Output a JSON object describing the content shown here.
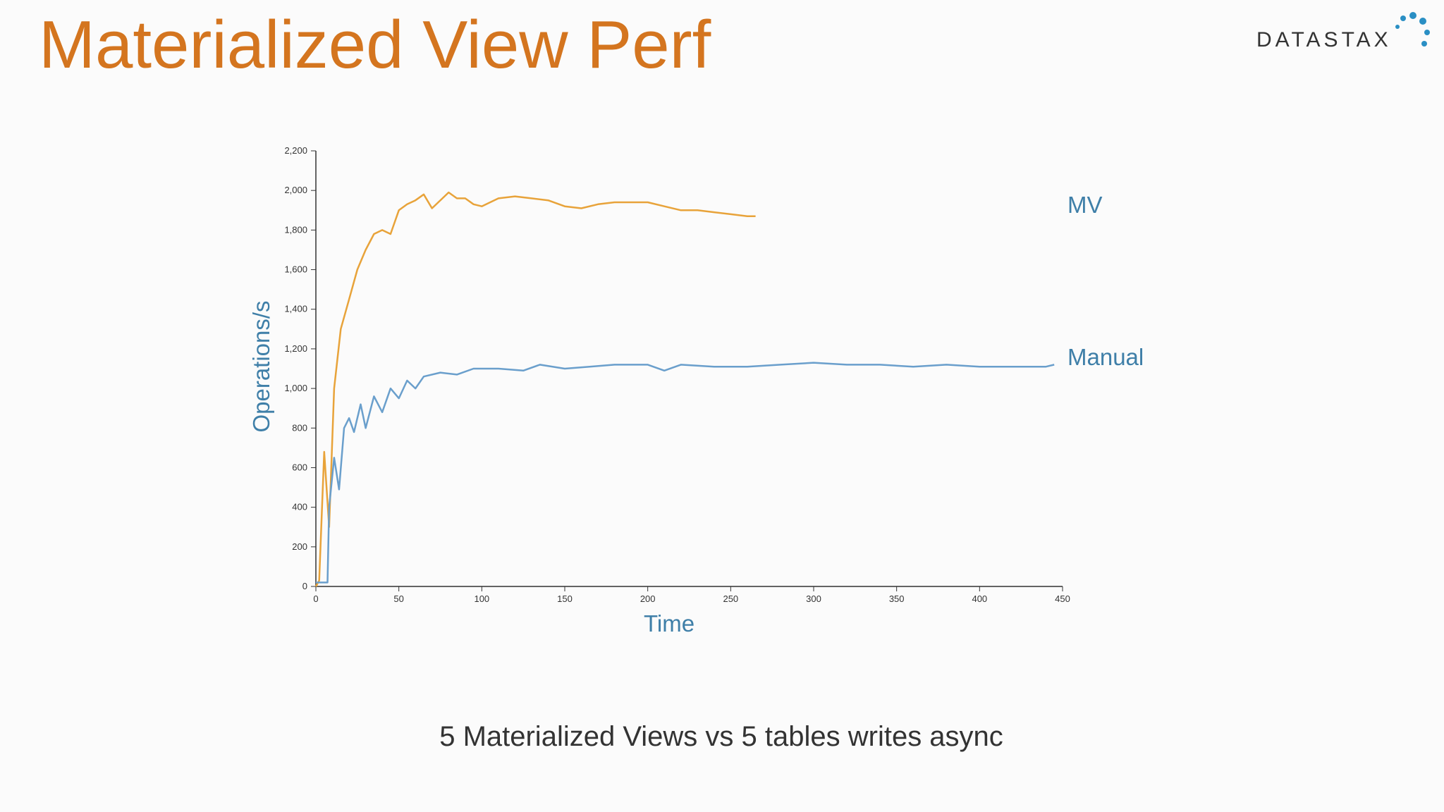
{
  "slide": {
    "title": "Materialized View Perf",
    "logo": "DATASTAX",
    "caption": "5 Materialized Views vs 5 tables writes async"
  },
  "chart_data": {
    "type": "line",
    "xlabel": "Time",
    "ylabel": "Operations/s",
    "xlim": [
      0,
      450
    ],
    "xticks": [
      0,
      50,
      100,
      150,
      200,
      250,
      300,
      350,
      400,
      450
    ],
    "ylim": [
      0,
      2200
    ],
    "yticks": [
      0,
      200,
      400,
      600,
      800,
      {
        "value": 1000,
        "label": "1,000"
      },
      {
        "value": 1200,
        "label": "1,200"
      },
      {
        "value": 1400,
        "label": "1,400"
      },
      {
        "value": 1600,
        "label": "1,600"
      },
      {
        "value": 1800,
        "label": "1,800"
      },
      {
        "value": 2000,
        "label": "2,000"
      },
      {
        "value": 2200,
        "label": "2,200"
      }
    ],
    "series": [
      {
        "name": "MV",
        "color": "#e8a33a",
        "x": [
          0,
          2,
          5,
          8,
          11,
          15,
          20,
          25,
          30,
          35,
          40,
          45,
          50,
          55,
          60,
          65,
          70,
          80,
          85,
          90,
          95,
          100,
          110,
          120,
          130,
          140,
          150,
          160,
          170,
          180,
          190,
          200,
          210,
          220,
          230,
          240,
          250,
          260,
          265
        ],
        "values": [
          0,
          30,
          680,
          300,
          1000,
          1300,
          1450,
          1600,
          1700,
          1780,
          1800,
          1780,
          1900,
          1930,
          1950,
          1980,
          1910,
          1990,
          1960,
          1960,
          1930,
          1920,
          1960,
          1970,
          1960,
          1950,
          1920,
          1910,
          1930,
          1940,
          1940,
          1940,
          1920,
          1900,
          1900,
          1890,
          1880,
          1870,
          1870
        ]
      },
      {
        "name": "Manual",
        "color": "#6a9fcc",
        "x": [
          0,
          5,
          7,
          8,
          11,
          14,
          17,
          20,
          23,
          27,
          30,
          35,
          40,
          45,
          50,
          55,
          60,
          65,
          75,
          85,
          95,
          110,
          125,
          135,
          150,
          165,
          180,
          200,
          210,
          220,
          240,
          260,
          280,
          300,
          320,
          340,
          360,
          380,
          400,
          420,
          440,
          445
        ],
        "values": [
          20,
          20,
          20,
          400,
          650,
          490,
          800,
          850,
          780,
          920,
          800,
          960,
          880,
          1000,
          950,
          1040,
          1000,
          1060,
          1080,
          1070,
          1100,
          1100,
          1090,
          1120,
          1100,
          1110,
          1120,
          1120,
          1090,
          1120,
          1110,
          1110,
          1120,
          1130,
          1120,
          1120,
          1110,
          1120,
          1110,
          1110,
          1110,
          1120
        ]
      }
    ]
  }
}
